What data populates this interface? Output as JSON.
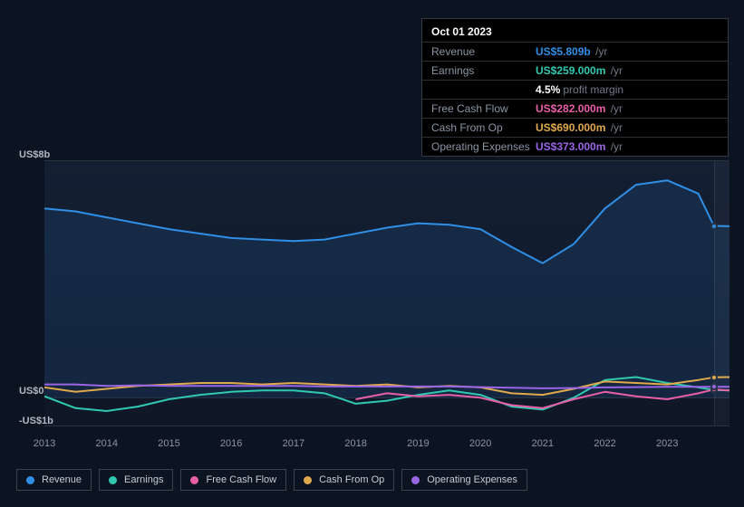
{
  "tooltip": {
    "date": "Oct 01 2023",
    "rows": [
      {
        "label": "Revenue",
        "value": "US$5.809b",
        "unit": "/yr",
        "color": "#2f8fe6"
      },
      {
        "label": "Earnings",
        "value": "US$259.000m",
        "unit": "/yr",
        "color": "#30c9b0"
      },
      {
        "label": "Free Cash Flow",
        "value": "US$282.000m",
        "unit": "/yr",
        "color": "#e85fa8"
      },
      {
        "label": "Cash From Op",
        "value": "US$690.000m",
        "unit": "/yr",
        "color": "#e0a94c"
      },
      {
        "label": "Operating Expenses",
        "value": "US$373.000m",
        "unit": "/yr",
        "color": "#9a66e6"
      }
    ],
    "margin_row_index": 1,
    "margin_pct": "4.5%",
    "margin_text": "profit margin"
  },
  "chart": {
    "type": "line",
    "background_color": "#0d1421",
    "plot_bg": "linear-gradient(180deg, rgba(25,40,65,0.55) 0%, rgba(20,30,50,0.35) 100%)",
    "grid_color": "#2a3240",
    "y_axis": {
      "ticks": [
        {
          "label": "US$8b",
          "value": 8
        },
        {
          "label": "US$0",
          "value": 0
        },
        {
          "label": "-US$1b",
          "value": -1
        }
      ],
      "min": -1,
      "max": 8,
      "label_fontsize": 11,
      "label_color": "#b0b8c4"
    },
    "x_axis": {
      "years": [
        2013,
        2014,
        2015,
        2016,
        2017,
        2018,
        2019,
        2020,
        2021,
        2022,
        2023
      ],
      "min": 2013,
      "max": 2024,
      "label_fontsize": 11,
      "label_color": "#8a95a5"
    },
    "cursor_year": 2023.75,
    "line_width": 2,
    "series": [
      {
        "name": "Revenue",
        "color": "#2f8fe6",
        "fill_opacity": 0.12,
        "values": [
          [
            2013.0,
            6.4
          ],
          [
            2013.5,
            6.3
          ],
          [
            2014.0,
            6.1
          ],
          [
            2014.5,
            5.9
          ],
          [
            2015.0,
            5.7
          ],
          [
            2015.5,
            5.55
          ],
          [
            2016.0,
            5.4
          ],
          [
            2016.5,
            5.35
          ],
          [
            2017.0,
            5.3
          ],
          [
            2017.5,
            5.35
          ],
          [
            2018.0,
            5.55
          ],
          [
            2018.5,
            5.75
          ],
          [
            2019.0,
            5.9
          ],
          [
            2019.5,
            5.85
          ],
          [
            2020.0,
            5.7
          ],
          [
            2020.5,
            5.1
          ],
          [
            2021.0,
            4.55
          ],
          [
            2021.5,
            5.2
          ],
          [
            2022.0,
            6.4
          ],
          [
            2022.5,
            7.2
          ],
          [
            2023.0,
            7.35
          ],
          [
            2023.5,
            6.9
          ],
          [
            2023.75,
            5.81
          ],
          [
            2024.0,
            5.8
          ]
        ]
      },
      {
        "name": "Earnings",
        "color": "#30c9b0",
        "values": [
          [
            2013.0,
            0.05
          ],
          [
            2013.5,
            -0.35
          ],
          [
            2014.0,
            -0.45
          ],
          [
            2014.5,
            -0.3
          ],
          [
            2015.0,
            -0.05
          ],
          [
            2015.5,
            0.1
          ],
          [
            2016.0,
            0.2
          ],
          [
            2016.5,
            0.25
          ],
          [
            2017.0,
            0.25
          ],
          [
            2017.5,
            0.15
          ],
          [
            2018.0,
            -0.2
          ],
          [
            2018.5,
            -0.1
          ],
          [
            2019.0,
            0.1
          ],
          [
            2019.5,
            0.25
          ],
          [
            2020.0,
            0.1
          ],
          [
            2020.5,
            -0.3
          ],
          [
            2021.0,
            -0.4
          ],
          [
            2021.5,
            0.0
          ],
          [
            2022.0,
            0.6
          ],
          [
            2022.5,
            0.7
          ],
          [
            2023.0,
            0.5
          ],
          [
            2023.5,
            0.35
          ],
          [
            2023.75,
            0.26
          ],
          [
            2024.0,
            0.25
          ]
        ]
      },
      {
        "name": "Free Cash Flow",
        "color": "#e85fa8",
        "values": [
          [
            2018.0,
            -0.05
          ],
          [
            2018.5,
            0.15
          ],
          [
            2019.0,
            0.05
          ],
          [
            2019.5,
            0.1
          ],
          [
            2020.0,
            0.0
          ],
          [
            2020.5,
            -0.25
          ],
          [
            2021.0,
            -0.35
          ],
          [
            2021.5,
            -0.05
          ],
          [
            2022.0,
            0.2
          ],
          [
            2022.5,
            0.05
          ],
          [
            2023.0,
            -0.05
          ],
          [
            2023.5,
            0.15
          ],
          [
            2023.75,
            0.28
          ],
          [
            2024.0,
            0.25
          ]
        ]
      },
      {
        "name": "Cash From Op",
        "color": "#e0a94c",
        "values": [
          [
            2013.0,
            0.35
          ],
          [
            2013.5,
            0.2
          ],
          [
            2014.0,
            0.3
          ],
          [
            2014.5,
            0.4
          ],
          [
            2015.0,
            0.45
          ],
          [
            2015.5,
            0.5
          ],
          [
            2016.0,
            0.5
          ],
          [
            2016.5,
            0.45
          ],
          [
            2017.0,
            0.5
          ],
          [
            2017.5,
            0.45
          ],
          [
            2018.0,
            0.4
          ],
          [
            2018.5,
            0.45
          ],
          [
            2019.0,
            0.35
          ],
          [
            2019.5,
            0.4
          ],
          [
            2020.0,
            0.35
          ],
          [
            2020.5,
            0.15
          ],
          [
            2021.0,
            0.1
          ],
          [
            2021.5,
            0.3
          ],
          [
            2022.0,
            0.55
          ],
          [
            2022.5,
            0.5
          ],
          [
            2023.0,
            0.45
          ],
          [
            2023.5,
            0.6
          ],
          [
            2023.75,
            0.69
          ],
          [
            2024.0,
            0.7
          ]
        ]
      },
      {
        "name": "Operating Expenses",
        "color": "#9a66e6",
        "values": [
          [
            2013.0,
            0.45
          ],
          [
            2013.5,
            0.45
          ],
          [
            2014.0,
            0.4
          ],
          [
            2014.5,
            0.42
          ],
          [
            2015.0,
            0.4
          ],
          [
            2015.5,
            0.4
          ],
          [
            2016.0,
            0.4
          ],
          [
            2016.5,
            0.4
          ],
          [
            2017.0,
            0.4
          ],
          [
            2017.5,
            0.38
          ],
          [
            2018.0,
            0.38
          ],
          [
            2018.5,
            0.38
          ],
          [
            2019.0,
            0.38
          ],
          [
            2019.5,
            0.38
          ],
          [
            2020.0,
            0.36
          ],
          [
            2020.5,
            0.34
          ],
          [
            2021.0,
            0.32
          ],
          [
            2021.5,
            0.33
          ],
          [
            2022.0,
            0.35
          ],
          [
            2022.5,
            0.36
          ],
          [
            2023.0,
            0.37
          ],
          [
            2023.5,
            0.37
          ],
          [
            2023.75,
            0.37
          ],
          [
            2024.0,
            0.37
          ]
        ]
      }
    ]
  },
  "legend": {
    "border_color": "#3a424e",
    "text_color": "#c5ccd6",
    "fontsize": 11,
    "items": [
      {
        "label": "Revenue",
        "color": "#2f8fe6"
      },
      {
        "label": "Earnings",
        "color": "#30c9b0"
      },
      {
        "label": "Free Cash Flow",
        "color": "#e85fa8"
      },
      {
        "label": "Cash From Op",
        "color": "#e0a94c"
      },
      {
        "label": "Operating Expenses",
        "color": "#9a66e6"
      }
    ]
  }
}
